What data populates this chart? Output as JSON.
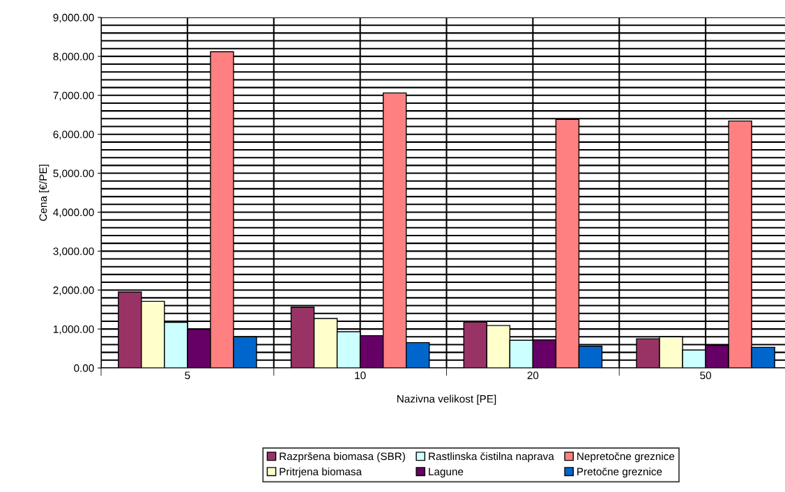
{
  "chart_data": {
    "type": "bar",
    "xlabel": "Nazivna velikost [PE]",
    "ylabel": "Cena [€/PE]",
    "categories": [
      "5",
      "10",
      "20",
      "50"
    ],
    "series": [
      {
        "name": "Razpršena biomasa (SBR)",
        "color": "#993366",
        "values": [
          1950,
          1560,
          1180,
          750
        ]
      },
      {
        "name": "Pritrjena biomasa",
        "color": "#ffffcc",
        "values": [
          1710,
          1270,
          1090,
          800
        ]
      },
      {
        "name": "Rastlinska čistilna naprava",
        "color": "#ccffff",
        "values": [
          1170,
          930,
          710,
          460
        ]
      },
      {
        "name": "Lagune",
        "color": "#660066",
        "values": [
          990,
          830,
          720,
          580
        ]
      },
      {
        "name": "Nepretočne greznice",
        "color": "#ff8080",
        "values": [
          8120,
          7060,
          6380,
          6340
        ]
      },
      {
        "name": "Pretočne greznice",
        "color": "#0066cc",
        "values": [
          800,
          650,
          560,
          530
        ]
      }
    ],
    "ylim": [
      0,
      9000
    ],
    "yticks": [
      {
        "value": 0,
        "label": "0.00"
      },
      {
        "value": 1000,
        "label": "1,000.00"
      },
      {
        "value": 2000,
        "label": "2,000.00"
      },
      {
        "value": 3000,
        "label": "3,000.00"
      },
      {
        "value": 4000,
        "label": "4,000.00"
      },
      {
        "value": 5000,
        "label": "5,000.00"
      },
      {
        "value": 6000,
        "label": "6,000.00"
      },
      {
        "value": 7000,
        "label": "7,000.00"
      },
      {
        "value": 8000,
        "label": "8,000.00"
      },
      {
        "value": 9000,
        "label": "9,000.00"
      }
    ],
    "grid": true,
    "legend": "bottom"
  }
}
